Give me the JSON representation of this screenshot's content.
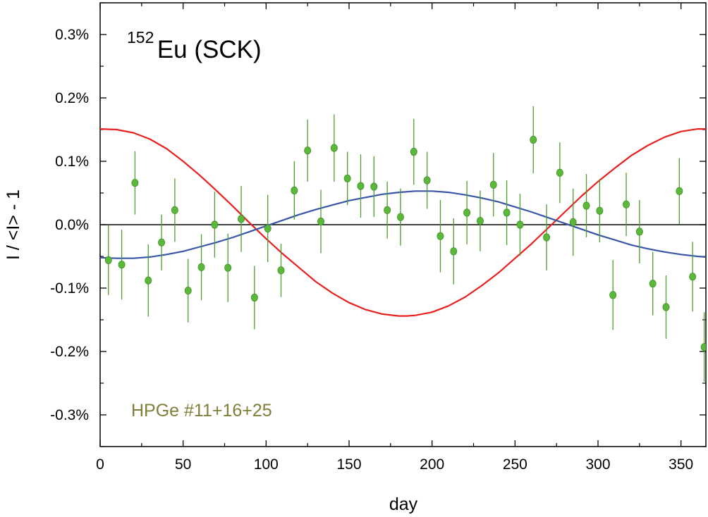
{
  "chart_data": {
    "type": "scatter",
    "title": {
      "superscript": "152",
      "main": "Eu (SCK)"
    },
    "annotation": "HPGe #11+16+25",
    "xlabel": "day",
    "ylabel": "I / <I> - 1",
    "xlim": [
      0,
      365
    ],
    "ylim": [
      -0.35,
      0.35
    ],
    "xticks": [
      0,
      50,
      100,
      150,
      200,
      250,
      300,
      350
    ],
    "xtick_labels": [
      "0",
      "50",
      "100",
      "150",
      "200",
      "250",
      "300",
      "350"
    ],
    "yticks": [
      -0.3,
      -0.2,
      -0.1,
      0.0,
      0.1,
      0.2,
      0.3
    ],
    "ytick_labels": [
      "-0.3%",
      "-0.2%",
      "-0.1%",
      "0.0%",
      "0.1%",
      "0.2%",
      "0.3%"
    ],
    "zero_line": 0,
    "colors": {
      "points": "#5cb83a",
      "point_stroke": "#3f8f25",
      "error_bars": "#4a9e2e",
      "red_curve": "#e8201e",
      "blue_curve": "#3a55a8",
      "annotation": "#7f7f3a"
    },
    "series": [
      {
        "name": "data",
        "kind": "points",
        "x": [
          5,
          13,
          21,
          29,
          37,
          45,
          53,
          61,
          69,
          77,
          85,
          93,
          101,
          109,
          117,
          125,
          133,
          141,
          149,
          157,
          165,
          173,
          181,
          189,
          197,
          205,
          213,
          221,
          229,
          237,
          245,
          253,
          261,
          269,
          277,
          285,
          293,
          301,
          309,
          317,
          325,
          333,
          341,
          349,
          357,
          364
        ],
        "y": [
          -0.056,
          -0.063,
          0.066,
          -0.088,
          -0.028,
          0.023,
          -0.104,
          -0.067,
          0.0,
          -0.068,
          0.009,
          -0.115,
          -0.006,
          -0.072,
          0.054,
          0.117,
          0.005,
          0.121,
          0.073,
          0.061,
          0.06,
          0.023,
          0.012,
          0.115,
          0.07,
          -0.018,
          -0.042,
          0.019,
          0.006,
          0.063,
          0.019,
          0.0,
          0.134,
          -0.02,
          0.082,
          0.004,
          0.03,
          0.022,
          -0.111,
          0.032,
          -0.011,
          -0.093,
          -0.13,
          0.053,
          -0.082,
          -0.193
        ],
        "yerr": [
          0.055,
          0.055,
          0.05,
          0.057,
          0.044,
          0.05,
          0.05,
          0.052,
          0.052,
          0.054,
          0.052,
          0.05,
          0.053,
          0.042,
          0.046,
          0.049,
          0.05,
          0.053,
          0.042,
          0.05,
          0.048,
          0.045,
          0.045,
          0.052,
          0.045,
          0.057,
          0.052,
          0.05,
          0.048,
          0.05,
          0.051,
          0.049,
          0.053,
          0.052,
          0.048,
          0.053,
          0.05,
          0.05,
          0.055,
          0.05,
          0.05,
          0.05,
          0.05,
          0.052,
          0.055,
          0.055
        ]
      },
      {
        "name": "red curve",
        "kind": "line",
        "x": [
          0,
          10,
          20,
          30,
          40,
          50,
          60,
          70,
          80,
          90,
          100,
          110,
          120,
          130,
          140,
          150,
          160,
          170,
          180,
          185,
          190,
          200,
          210,
          220,
          230,
          240,
          250,
          260,
          270,
          280,
          290,
          300,
          310,
          320,
          330,
          340,
          350,
          360,
          365
        ],
        "y": [
          0.151,
          0.15,
          0.145,
          0.135,
          0.12,
          0.1,
          0.078,
          0.054,
          0.029,
          0.003,
          -0.022,
          -0.046,
          -0.068,
          -0.09,
          -0.108,
          -0.123,
          -0.134,
          -0.141,
          -0.144,
          -0.144,
          -0.143,
          -0.138,
          -0.128,
          -0.114,
          -0.096,
          -0.076,
          -0.053,
          -0.03,
          -0.005,
          0.02,
          0.045,
          0.068,
          0.089,
          0.109,
          0.125,
          0.138,
          0.147,
          0.151,
          0.151
        ]
      },
      {
        "name": "blue curve",
        "kind": "line",
        "x": [
          0,
          10,
          20,
          30,
          40,
          50,
          60,
          70,
          80,
          90,
          100,
          110,
          120,
          130,
          140,
          150,
          160,
          170,
          180,
          190,
          195,
          200,
          210,
          220,
          230,
          240,
          250,
          260,
          270,
          280,
          290,
          300,
          310,
          320,
          330,
          340,
          350,
          360,
          365
        ],
        "y": [
          -0.052,
          -0.053,
          -0.053,
          -0.051,
          -0.047,
          -0.042,
          -0.035,
          -0.028,
          -0.02,
          -0.011,
          -0.002,
          0.007,
          0.016,
          0.024,
          0.031,
          0.038,
          0.043,
          0.048,
          0.051,
          0.053,
          0.053,
          0.053,
          0.051,
          0.047,
          0.042,
          0.036,
          0.028,
          0.02,
          0.011,
          0.002,
          -0.007,
          -0.016,
          -0.024,
          -0.032,
          -0.038,
          -0.043,
          -0.047,
          -0.05,
          -0.051
        ]
      }
    ]
  }
}
